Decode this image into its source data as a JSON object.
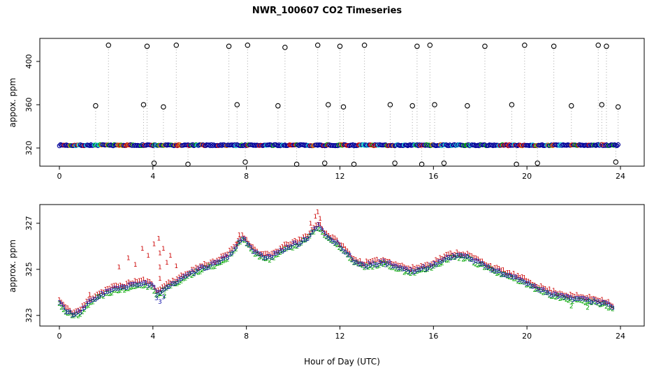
{
  "title": "NWR_100607  CO2 Timeseries",
  "xlabel": "Hour of Day (UTC)",
  "chart_data": [
    {
      "type": "scatter",
      "panel": "top",
      "ylabel": "appox. ppm",
      "yticks": [
        320,
        360,
        400
      ],
      "xticks": [
        0,
        4,
        8,
        12,
        16,
        20,
        24
      ],
      "ylim": [
        300,
        420
      ],
      "xlim": [
        0,
        24
      ],
      "grid": false,
      "legend": "none",
      "baseline": {
        "x_start": 0,
        "x_end": 23.9,
        "step": 0.05,
        "y_mean": 322.6,
        "y_noise": 0.6,
        "seed": 7,
        "palette": [
          "#000099",
          "#cc0000",
          "#00a400",
          "#00cccc",
          "#cc6600"
        ],
        "weights": [
          0.72,
          0.1,
          0.07,
          0.07,
          0.04
        ]
      },
      "spikes_high": [
        [
          2.1,
          415
        ],
        [
          3.75,
          414
        ],
        [
          5.0,
          415
        ],
        [
          7.25,
          414
        ],
        [
          8.05,
          415
        ],
        [
          9.65,
          413
        ],
        [
          11.05,
          415
        ],
        [
          12.0,
          414
        ],
        [
          13.05,
          415
        ],
        [
          15.3,
          414
        ],
        [
          15.85,
          415
        ],
        [
          18.2,
          414
        ],
        [
          19.9,
          415
        ],
        [
          21.15,
          414
        ],
        [
          23.05,
          415
        ],
        [
          23.4,
          414
        ]
      ],
      "spikes_mid": [
        [
          1.55,
          359
        ],
        [
          3.6,
          360
        ],
        [
          4.45,
          358
        ],
        [
          7.6,
          360
        ],
        [
          9.35,
          359
        ],
        [
          11.5,
          360
        ],
        [
          12.15,
          358
        ],
        [
          14.15,
          360
        ],
        [
          15.1,
          359
        ],
        [
          16.05,
          360
        ],
        [
          17.45,
          359
        ],
        [
          19.35,
          360
        ],
        [
          21.9,
          359
        ],
        [
          23.2,
          360
        ],
        [
          23.9,
          358
        ]
      ],
      "dips_low": [
        [
          4.05,
          306
        ],
        [
          5.5,
          305
        ],
        [
          7.95,
          307
        ],
        [
          10.15,
          305
        ],
        [
          11.35,
          306
        ],
        [
          12.6,
          305
        ],
        [
          14.35,
          306
        ],
        [
          15.5,
          305
        ],
        [
          16.45,
          306
        ],
        [
          19.55,
          305
        ],
        [
          20.45,
          306
        ],
        [
          23.8,
          307
        ]
      ],
      "spike_color": "#000000",
      "connector_color": "#aaaaaa"
    },
    {
      "type": "scatter",
      "panel": "bottom",
      "marker": "text-digits",
      "ylabel": "approx. ppm",
      "xlabel": "Hour of Day (UTC)",
      "yticks": [
        323,
        325,
        327
      ],
      "xticks": [
        0,
        4,
        8,
        12,
        16,
        20,
        24
      ],
      "ylim": [
        322.5,
        327.7
      ],
      "xlim": [
        0,
        24
      ],
      "grid": false,
      "sample_step": 0.09,
      "noise": 0.07,
      "base_keypoints": [
        [
          0,
          323.55
        ],
        [
          0.3,
          323.2
        ],
        [
          0.6,
          323.0
        ],
        [
          0.9,
          323.15
        ],
        [
          1.2,
          323.5
        ],
        [
          1.6,
          323.8
        ],
        [
          2.0,
          324.0
        ],
        [
          2.4,
          324.15
        ],
        [
          2.8,
          324.2
        ],
        [
          3.2,
          324.35
        ],
        [
          3.6,
          324.4
        ],
        [
          4.0,
          324.25
        ],
        [
          4.2,
          323.9
        ],
        [
          4.5,
          324.2
        ],
        [
          4.8,
          324.35
        ],
        [
          5.2,
          324.55
        ],
        [
          5.6,
          324.8
        ],
        [
          6.0,
          325.0
        ],
        [
          6.4,
          325.15
        ],
        [
          6.8,
          325.3
        ],
        [
          7.2,
          325.55
        ],
        [
          7.5,
          325.9
        ],
        [
          7.8,
          326.35
        ],
        [
          8.0,
          326.2
        ],
        [
          8.3,
          325.8
        ],
        [
          8.6,
          325.55
        ],
        [
          9.0,
          325.5
        ],
        [
          9.4,
          325.75
        ],
        [
          9.8,
          326.0
        ],
        [
          10.2,
          326.1
        ],
        [
          10.6,
          326.35
        ],
        [
          10.9,
          326.7
        ],
        [
          11.1,
          326.9
        ],
        [
          11.35,
          326.5
        ],
        [
          11.6,
          326.3
        ],
        [
          11.9,
          326.1
        ],
        [
          12.2,
          325.8
        ],
        [
          12.6,
          325.35
        ],
        [
          13.0,
          325.15
        ],
        [
          13.4,
          325.2
        ],
        [
          13.8,
          325.3
        ],
        [
          14.2,
          325.2
        ],
        [
          14.6,
          325.05
        ],
        [
          15.0,
          324.9
        ],
        [
          15.4,
          325.0
        ],
        [
          15.8,
          325.1
        ],
        [
          16.2,
          325.3
        ],
        [
          16.6,
          325.5
        ],
        [
          17.0,
          325.6
        ],
        [
          17.4,
          325.55
        ],
        [
          17.8,
          325.35
        ],
        [
          18.2,
          325.15
        ],
        [
          18.6,
          324.95
        ],
        [
          19.0,
          324.8
        ],
        [
          19.4,
          324.65
        ],
        [
          19.8,
          324.5
        ],
        [
          20.2,
          324.3
        ],
        [
          20.6,
          324.1
        ],
        [
          21.0,
          323.95
        ],
        [
          21.4,
          323.85
        ],
        [
          21.8,
          323.75
        ],
        [
          22.2,
          323.7
        ],
        [
          22.6,
          323.65
        ],
        [
          23.0,
          323.6
        ],
        [
          23.4,
          323.5
        ],
        [
          23.7,
          323.3
        ]
      ],
      "series": [
        {
          "label": "1",
          "color": "#cc0000",
          "offset": 0.12,
          "seed": 11,
          "extra": [
            [
              2.55,
              325.1
            ],
            [
              2.95,
              325.5
            ],
            [
              3.25,
              325.2
            ],
            [
              3.55,
              325.9
            ],
            [
              3.8,
              325.6
            ],
            [
              4.05,
              326.1
            ],
            [
              4.25,
              326.35
            ],
            [
              4.3,
              325.7
            ],
            [
              4.3,
              325.1
            ],
            [
              4.3,
              324.6
            ],
            [
              4.45,
              325.9
            ],
            [
              4.6,
              325.3
            ],
            [
              4.75,
              325.6
            ],
            [
              5.0,
              325.15
            ],
            [
              1.3,
              323.9
            ],
            [
              7.6,
              326.1
            ],
            [
              7.7,
              326.5
            ],
            [
              10.75,
              327.0
            ],
            [
              10.95,
              327.3
            ],
            [
              11.05,
              327.5
            ],
            [
              11.15,
              327.2
            ]
          ]
        },
        {
          "label": "2",
          "color": "#00a400",
          "offset": -0.06,
          "seed": 22,
          "extra": [
            [
              4.35,
              323.95
            ],
            [
              4.5,
              323.85
            ],
            [
              21.9,
              323.4
            ],
            [
              22.6,
              323.35
            ]
          ]
        },
        {
          "label": "3",
          "color": "#1111aa",
          "offset": 0,
          "seed": 33,
          "extra": [
            [
              4.15,
              323.75
            ],
            [
              4.3,
              323.6
            ],
            [
              4.45,
              323.8
            ]
          ]
        }
      ]
    }
  ]
}
